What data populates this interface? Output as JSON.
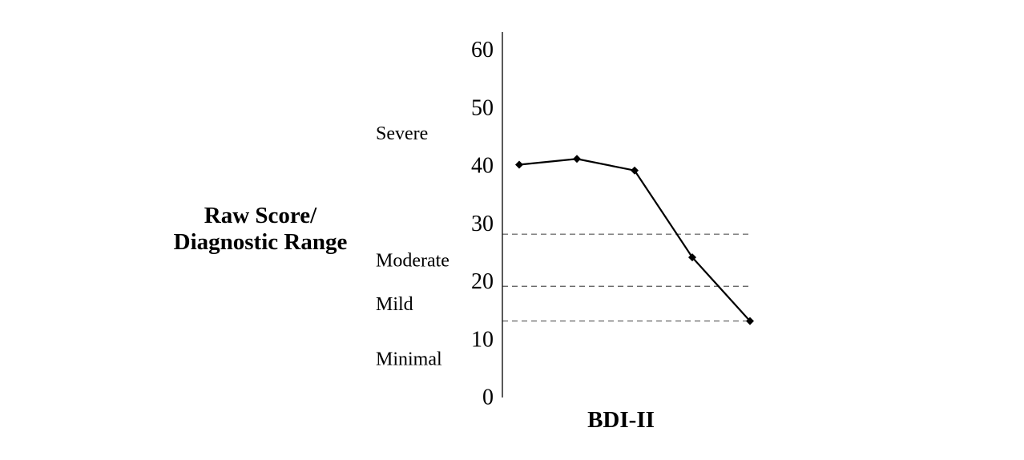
{
  "chart_data": {
    "type": "line",
    "title": "",
    "xlabel": "BDI-II",
    "ylabel_lines": [
      "Raw Score/",
      "Diagnostic Range"
    ],
    "ylim": [
      0,
      60
    ],
    "y_ticks": [
      0,
      10,
      20,
      30,
      40,
      50,
      60
    ],
    "x": [
      1,
      2,
      3,
      4,
      5
    ],
    "values": [
      40,
      41,
      39,
      24,
      13
    ],
    "line_color": "#000000",
    "marker": "diamond",
    "range_boundaries": [
      13,
      19,
      28
    ],
    "range_labels": [
      {
        "label": "Severe",
        "y": 45.5
      },
      {
        "label": "Moderate",
        "y": 23.5
      },
      {
        "label": "Mild",
        "y": 16
      },
      {
        "label": "Minimal",
        "y": 6.5
      }
    ],
    "grid": false
  }
}
